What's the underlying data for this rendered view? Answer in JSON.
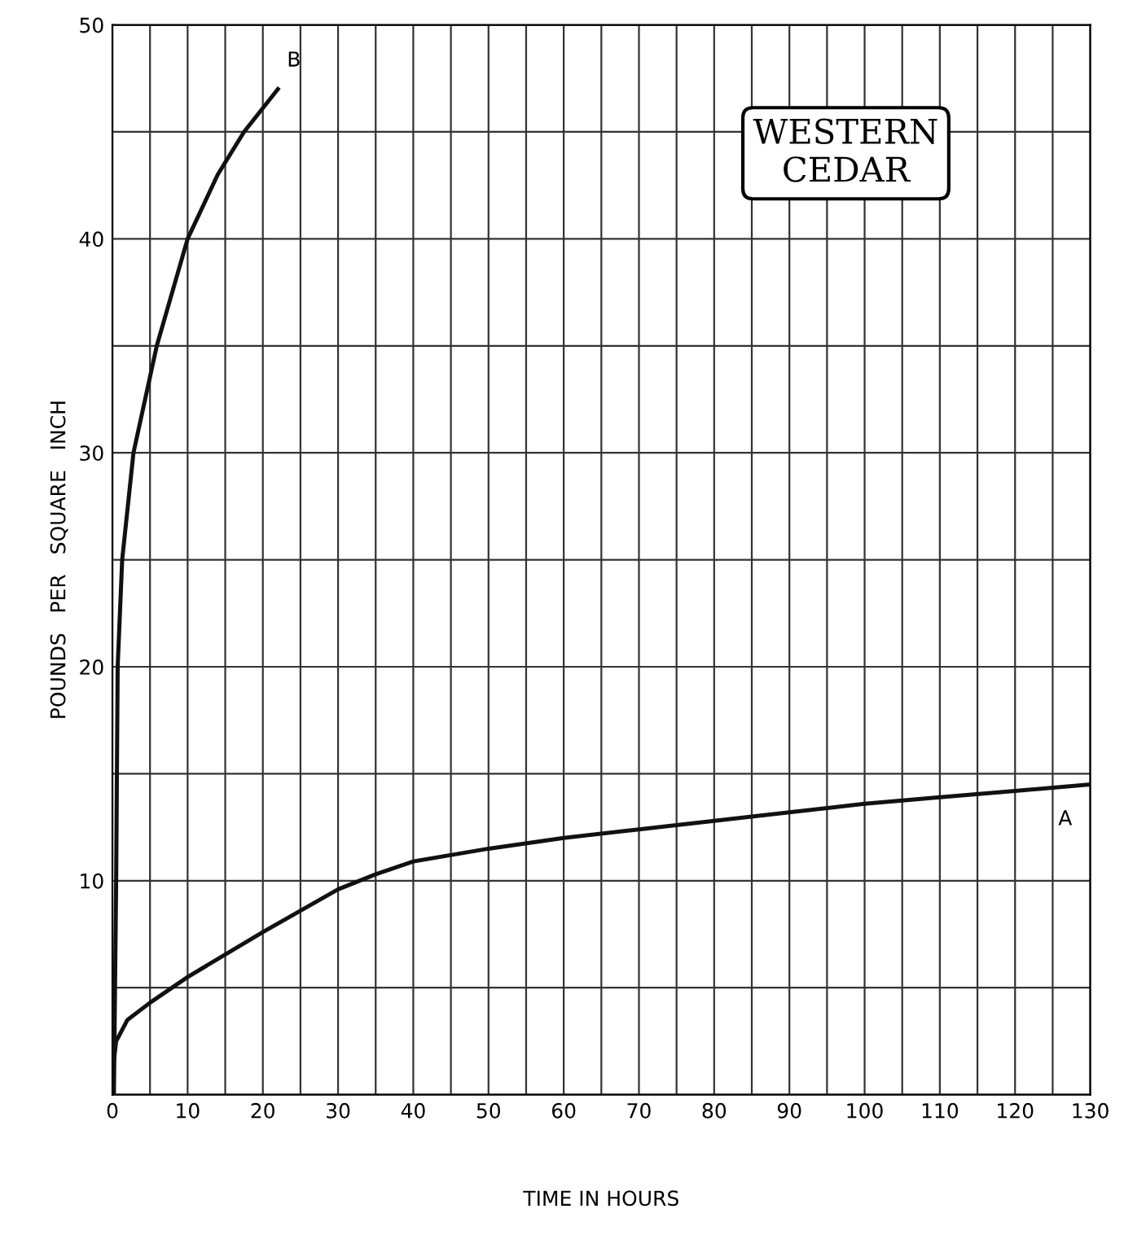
{
  "chart_data": {
    "type": "line",
    "xlabel": "TIME IN HOURS",
    "ylabel": "POUNDS   PER   SQUARE   INCH",
    "annotations": [
      "WESTERN\nCEDAR"
    ],
    "series": [
      {
        "name": "A",
        "color": "#111111",
        "x": [
          0,
          0.5,
          2,
          5,
          10,
          20,
          30,
          35,
          40,
          50,
          60,
          70,
          80,
          90,
          100,
          110,
          120,
          130
        ],
        "values": [
          1,
          2.5,
          3.5,
          4.3,
          5.5,
          7.6,
          9.6,
          10.3,
          10.9,
          11.5,
          12,
          12.4,
          12.8,
          13.2,
          13.6,
          13.9,
          14.2,
          14.5
        ]
      },
      {
        "name": "B",
        "color": "#111111",
        "x": [
          0.2,
          0.5,
          0.7,
          1.3,
          2.8,
          5.9,
          10,
          14,
          17.5,
          22
        ],
        "values": [
          0,
          10,
          20,
          25,
          30,
          35,
          40,
          43,
          45,
          47
        ]
      }
    ],
    "xlim": [
      0,
      130
    ],
    "xticks": [
      0,
      10,
      20,
      30,
      40,
      50,
      60,
      70,
      80,
      90,
      100,
      110,
      120,
      130
    ],
    "ylim": [
      0,
      50
    ],
    "yticks": [
      {
        "value": 0,
        "label": null
      },
      10,
      20,
      30,
      40,
      50
    ],
    "grid": true,
    "marker": "none",
    "line_style": "solid",
    "legend": false
  }
}
